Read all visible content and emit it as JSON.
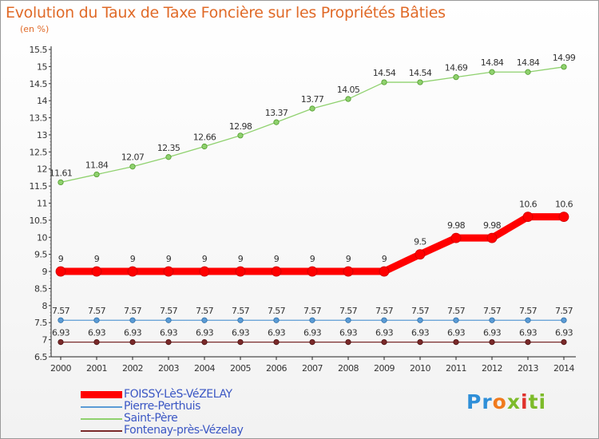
{
  "chart_data": {
    "type": "line",
    "title": "Evolution du Taux de Taxe Foncière sur les Propriétés Bâties",
    "unit": "(en %)",
    "x": [
      "2000",
      "2001",
      "2002",
      "2003",
      "2004",
      "2005",
      "2006",
      "2007",
      "2008",
      "2009",
      "2010",
      "2011",
      "2012",
      "2013",
      "2014"
    ],
    "ylim": [
      6.5,
      15.5
    ],
    "yticks": [
      "6.5",
      "7",
      "7.5",
      "8",
      "8.5",
      "9",
      "9.5",
      "10",
      "10.5",
      "11",
      "11.5",
      "12",
      "12.5",
      "13",
      "13.5",
      "14",
      "14.5",
      "15",
      "15.5"
    ],
    "grid": false,
    "legend_position": "bottom-left",
    "series": [
      {
        "name": "FOISSY-LèS-VéZELAY",
        "color": "#ff0000",
        "values": [
          9,
          9,
          9,
          9,
          9,
          9,
          9,
          9,
          9,
          9,
          9.5,
          9.98,
          9.98,
          10.6,
          10.6
        ],
        "labels": [
          "9",
          "9",
          "9",
          "9",
          "9",
          "9",
          "9",
          "9",
          "9",
          "9",
          "9.5",
          "9.98",
          "9.98",
          "10.6",
          "10.6"
        ]
      },
      {
        "name": "Pierre-Perthuis",
        "color": "#5b9bd5",
        "values": [
          7.57,
          7.57,
          7.57,
          7.57,
          7.57,
          7.57,
          7.57,
          7.57,
          7.57,
          7.57,
          7.57,
          7.57,
          7.57,
          7.57,
          7.57
        ],
        "labels": [
          "7.57",
          "7.57",
          "7.57",
          "7.57",
          "7.57",
          "7.57",
          "7.57",
          "7.57",
          "7.57",
          "7.57",
          "7.57",
          "7.57",
          "7.57",
          "7.57",
          "7.57"
        ]
      },
      {
        "name": "Saint-Père",
        "color": "#8fd16e",
        "values": [
          11.61,
          11.84,
          12.07,
          12.35,
          12.66,
          12.98,
          13.37,
          13.77,
          14.05,
          14.54,
          14.54,
          14.69,
          14.84,
          14.84,
          14.99
        ],
        "labels": [
          "11.61",
          "11.84",
          "12.07",
          "12.35",
          "12.66",
          "12.98",
          "13.37",
          "13.77",
          "14.05",
          "14.54",
          "14.54",
          "14.69",
          "14.84",
          "14.84",
          "14.99"
        ]
      },
      {
        "name": "Fontenay-près-Vézelay",
        "color": "#7a2a2a",
        "values": [
          6.93,
          6.93,
          6.93,
          6.93,
          6.93,
          6.93,
          6.93,
          6.93,
          6.93,
          6.93,
          6.93,
          6.93,
          6.93,
          6.93,
          6.93
        ],
        "labels": [
          "6.93",
          "6.93",
          "6.93",
          "6.93",
          "6.93",
          "6.93",
          "6.93",
          "6.93",
          "6.93",
          "6.93",
          "6.93",
          "6.93",
          "6.93",
          "6.93",
          "6.93"
        ]
      }
    ]
  },
  "logo": {
    "c1": "Pr",
    "c2": "o",
    "c3": "x",
    "c4": "i",
    "c5": "ti"
  }
}
